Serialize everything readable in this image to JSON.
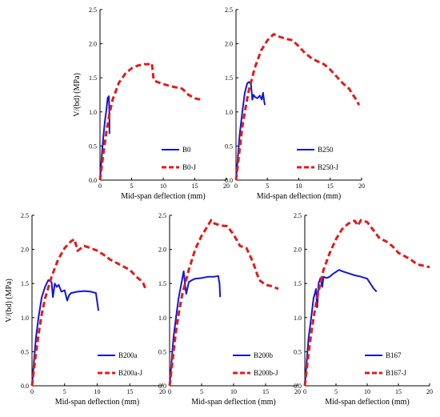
{
  "colors": {
    "test1": "#1515d8",
    "test2": "#e41a1a",
    "axis": "#000000"
  },
  "chart_data": [
    {
      "type": "line",
      "xlabel": "Mid-span deflection (mm)",
      "ylabel": "V/(bd) (MPa)",
      "xlim": [
        0,
        20
      ],
      "ylim": [
        0,
        2.5
      ],
      "xticks": [
        0,
        5,
        10,
        15,
        20
      ],
      "yticks": [
        "0.0",
        "0.5",
        "1.0",
        "1.5",
        "2.0",
        "2.5"
      ],
      "legend": "bottom-right",
      "series": [
        {
          "name": "B0",
          "style": "solid",
          "x": [
            0,
            0.2,
            0.4,
            0.6,
            0.8,
            1.0,
            1.2,
            1.4,
            1.5,
            1.5
          ],
          "y": [
            0,
            0.25,
            0.5,
            0.7,
            0.88,
            1.02,
            1.2,
            1.23,
            0.95,
            0.68
          ]
        },
        {
          "name": "B0-J",
          "style": "dashed",
          "x": [
            0,
            0.5,
            1,
            1.5,
            2,
            3,
            4,
            5,
            6,
            7,
            8,
            8.2,
            8.5,
            9,
            10,
            11,
            12,
            13,
            14,
            15,
            16
          ],
          "y": [
            0,
            0.36,
            0.7,
            0.97,
            1.18,
            1.43,
            1.56,
            1.64,
            1.68,
            1.7,
            1.7,
            1.71,
            1.47,
            1.44,
            1.41,
            1.38,
            1.36,
            1.34,
            1.25,
            1.2,
            1.18
          ]
        }
      ]
    },
    {
      "type": "line",
      "xlabel": "Mid-span deflection (mm)",
      "ylabel": "",
      "xlim": [
        0,
        20
      ],
      "ylim": [
        0,
        2.5
      ],
      "xticks": [
        0,
        5,
        10,
        15,
        20
      ],
      "yticks": [
        "0.0",
        "0.5",
        "1.0",
        "1.5",
        "2.0",
        "2.5"
      ],
      "legend": "bottom-right",
      "series": [
        {
          "name": "B250",
          "style": "solid",
          "x": [
            0,
            0.3,
            0.6,
            1.0,
            1.4,
            1.8,
            2.1,
            2.4,
            2.6,
            2.8,
            3.0,
            3.4,
            3.8,
            4.1,
            4.3,
            4.5,
            4.6
          ],
          "y": [
            0,
            0.35,
            0.68,
            1.0,
            1.28,
            1.42,
            1.44,
            1.4,
            1.18,
            1.25,
            1.22,
            1.2,
            1.24,
            1.18,
            1.28,
            1.15,
            1.1
          ]
        },
        {
          "name": "B250-J",
          "style": "dashed",
          "x": [
            0,
            0.5,
            1,
            1.5,
            2,
            3,
            4,
            5,
            6,
            7,
            8,
            9,
            10,
            11,
            12,
            13,
            14,
            15,
            16,
            17,
            18,
            19,
            19.6
          ],
          "y": [
            0,
            0.38,
            0.78,
            1.05,
            1.3,
            1.65,
            1.9,
            2.05,
            2.14,
            2.1,
            2.07,
            2.05,
            1.96,
            1.86,
            1.79,
            1.74,
            1.7,
            1.62,
            1.52,
            1.42,
            1.34,
            1.2,
            1.1
          ]
        }
      ]
    },
    {
      "type": "line",
      "xlabel": "Mid-span deflection (mm)",
      "ylabel": "V/(bd) (MPa)",
      "xlim": [
        0,
        20
      ],
      "ylim": [
        0,
        2.5
      ],
      "xticks": [
        0,
        5,
        10,
        15,
        20
      ],
      "yticks": [
        "0.0",
        "0.5",
        "1.0",
        "1.5",
        "2.0",
        "2.5"
      ],
      "legend": "bottom-right",
      "series": [
        {
          "name": "B200a",
          "style": "solid",
          "x": [
            0,
            0.3,
            0.6,
            1,
            1.5,
            2,
            2.5,
            3,
            3.2,
            3.5,
            3.8,
            4.1,
            4.5,
            5,
            5.4,
            5.7,
            6,
            7,
            8,
            9,
            9.8,
            10.2
          ],
          "y": [
            0,
            0.35,
            0.7,
            1.0,
            1.3,
            1.45,
            1.55,
            1.52,
            1.3,
            1.5,
            1.45,
            1.48,
            1.38,
            1.4,
            1.25,
            1.33,
            1.36,
            1.38,
            1.39,
            1.38,
            1.36,
            1.1
          ]
        },
        {
          "name": "B200a-J",
          "style": "dashed",
          "x": [
            0,
            0.5,
            1,
            1.5,
            2,
            3,
            4,
            5,
            6,
            6.5,
            7,
            8,
            9,
            10,
            11,
            12,
            13,
            14,
            15,
            16,
            17,
            17.5
          ],
          "y": [
            0,
            0.4,
            0.75,
            1.05,
            1.28,
            1.6,
            1.85,
            2.02,
            2.12,
            2.15,
            1.98,
            2.05,
            2.02,
            1.98,
            1.92,
            1.85,
            1.8,
            1.75,
            1.7,
            1.6,
            1.52,
            1.4
          ]
        }
      ]
    },
    {
      "type": "line",
      "xlabel": "Mid-span deflection (mm)",
      "ylabel": "",
      "xlim": [
        0,
        20
      ],
      "ylim": [
        0,
        2.5
      ],
      "xticks": [
        0,
        5,
        10,
        15,
        20
      ],
      "yticks": [
        "0.0",
        "0.5",
        "1.0",
        "1.5",
        "2.0",
        "2.5"
      ],
      "legend": "bottom-right",
      "series": [
        {
          "name": "B200b",
          "style": "solid",
          "x": [
            0,
            0.3,
            0.6,
            1,
            1.4,
            1.8,
            2.2,
            2.4,
            2.6,
            3,
            3.5,
            4,
            5,
            6,
            7,
            7.6,
            7.8,
            7.9
          ],
          "y": [
            0,
            0.35,
            0.7,
            1.0,
            1.28,
            1.48,
            1.68,
            1.5,
            1.35,
            1.52,
            1.55,
            1.57,
            1.58,
            1.6,
            1.6,
            1.61,
            1.5,
            1.3
          ]
        },
        {
          "name": "B200b-J",
          "style": "dashed",
          "x": [
            0,
            0.5,
            1,
            1.5,
            2,
            3,
            4,
            5,
            6,
            6.5,
            7,
            8,
            9,
            10,
            11,
            12,
            13,
            14,
            15,
            16,
            17
          ],
          "y": [
            0,
            0.4,
            0.8,
            1.1,
            1.35,
            1.7,
            2.0,
            2.2,
            2.35,
            2.43,
            2.38,
            2.35,
            2.34,
            2.22,
            2.05,
            2.02,
            1.82,
            1.55,
            1.48,
            1.46,
            1.42
          ]
        }
      ]
    },
    {
      "type": "line",
      "xlabel": "Mid-span deflection (mm)",
      "ylabel": "",
      "xlim": [
        0,
        20
      ],
      "ylim": [
        0,
        2.5
      ],
      "xticks": [
        0,
        5,
        10,
        15,
        20
      ],
      "yticks": [
        "0.0",
        "0.5",
        "1.0",
        "1.5",
        "2.0",
        "2.5"
      ],
      "legend": "bottom-right",
      "series": [
        {
          "name": "B167",
          "style": "solid",
          "x": [
            0,
            0.3,
            0.6,
            1,
            1.4,
            1.8,
            2.0,
            2.2,
            2.5,
            2.8,
            3.0,
            3.5,
            4,
            4.5,
            5,
            5.5,
            6,
            7,
            8,
            9,
            10,
            11,
            11.5
          ],
          "y": [
            0,
            0.35,
            0.7,
            0.98,
            1.28,
            1.42,
            1.15,
            1.5,
            1.58,
            1.45,
            1.6,
            1.58,
            1.6,
            1.64,
            1.67,
            1.7,
            1.68,
            1.65,
            1.62,
            1.6,
            1.57,
            1.43,
            1.38
          ]
        },
        {
          "name": "B167-J",
          "style": "dashed",
          "x": [
            0,
            0.5,
            1,
            1.5,
            2,
            3,
            4,
            5,
            6,
            7,
            8,
            8.5,
            9,
            10,
            11,
            12,
            13,
            14,
            15,
            16,
            17,
            18,
            19,
            20
          ],
          "y": [
            0,
            0.4,
            0.75,
            1.05,
            1.3,
            1.7,
            1.95,
            2.15,
            2.3,
            2.38,
            2.42,
            2.35,
            2.43,
            2.4,
            2.28,
            2.16,
            2.12,
            2.05,
            1.95,
            1.9,
            1.85,
            1.78,
            1.76,
            1.74
          ]
        }
      ]
    }
  ]
}
